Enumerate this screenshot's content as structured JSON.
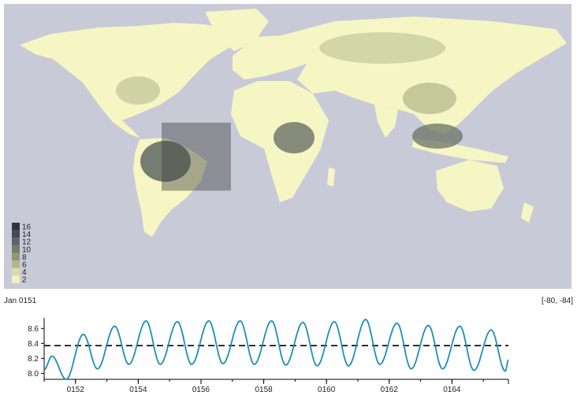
{
  "map": {
    "ocean_color": "#c9cad8",
    "land_color": "#f6f6c4",
    "selection": {
      "lon_range": [
        -80,
        -36
      ],
      "lat_range": [
        -28,
        15
      ]
    }
  },
  "legend": {
    "values": [
      "16",
      "14",
      "12",
      "10",
      "8",
      "6",
      "4",
      "2"
    ],
    "colors": [
      "#2c3444",
      "#434b58",
      "#5b6466",
      "#737c6c",
      "#8e9876",
      "#b1b98c",
      "#d7dca9",
      "#f2f1c2"
    ]
  },
  "status": {
    "time": "Jan 0151",
    "coords": "[-80, -84]"
  },
  "chart_data": {
    "type": "line",
    "title": "",
    "xlabel": "",
    "ylabel": "",
    "x_ticks": [
      "0152",
      "0154",
      "0156",
      "0158",
      "0160",
      "0162",
      "0164"
    ],
    "y_ticks": [
      "8.0",
      "8.2",
      "8.4",
      "8.6"
    ],
    "xlim": [
      151.0,
      165.8
    ],
    "ylim": [
      7.92,
      8.74
    ],
    "mean": 8.37,
    "series_color": "#1c8fb5",
    "peaks": [
      {
        "x": 151.25,
        "y": 8.23
      },
      {
        "x": 152.25,
        "y": 8.52
      },
      {
        "x": 153.25,
        "y": 8.63
      },
      {
        "x": 154.25,
        "y": 8.7
      },
      {
        "x": 155.25,
        "y": 8.69
      },
      {
        "x": 156.25,
        "y": 8.7
      },
      {
        "x": 157.25,
        "y": 8.7
      },
      {
        "x": 158.25,
        "y": 8.7
      },
      {
        "x": 159.25,
        "y": 8.68
      },
      {
        "x": 160.25,
        "y": 8.69
      },
      {
        "x": 161.25,
        "y": 8.72
      },
      {
        "x": 162.25,
        "y": 8.67
      },
      {
        "x": 163.25,
        "y": 8.64
      },
      {
        "x": 164.25,
        "y": 8.63
      },
      {
        "x": 165.25,
        "y": 8.58
      }
    ],
    "troughs": [
      {
        "x": 151.0,
        "y": 8.05
      },
      {
        "x": 151.7,
        "y": 7.92
      },
      {
        "x": 152.7,
        "y": 8.06
      },
      {
        "x": 153.7,
        "y": 8.12
      },
      {
        "x": 154.7,
        "y": 8.12
      },
      {
        "x": 155.7,
        "y": 8.12
      },
      {
        "x": 156.7,
        "y": 8.13
      },
      {
        "x": 157.7,
        "y": 8.12
      },
      {
        "x": 158.7,
        "y": 8.11
      },
      {
        "x": 159.7,
        "y": 8.1
      },
      {
        "x": 160.7,
        "y": 8.1
      },
      {
        "x": 161.7,
        "y": 8.12
      },
      {
        "x": 162.7,
        "y": 8.06
      },
      {
        "x": 163.7,
        "y": 8.06
      },
      {
        "x": 164.7,
        "y": 8.04
      },
      {
        "x": 165.7,
        "y": 8.03
      }
    ],
    "end": {
      "x": 165.8,
      "y": 8.18
    }
  }
}
